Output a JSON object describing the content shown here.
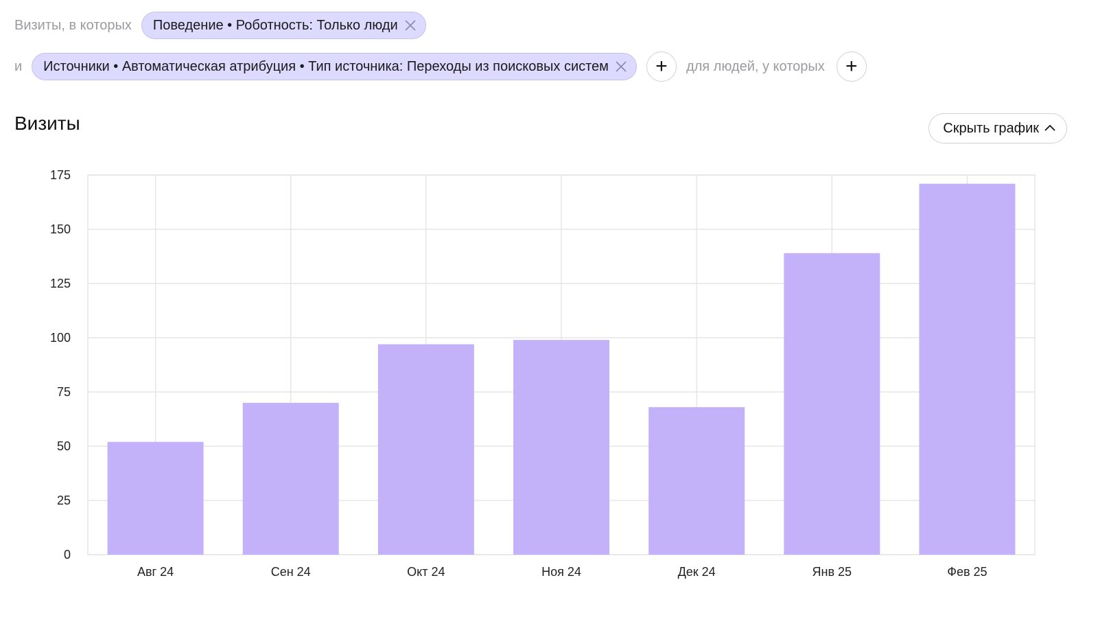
{
  "filters": {
    "visits_prefix": "Визиты, в которых",
    "and_prefix": "и",
    "chip1": "Поведение • Роботность: Только люди",
    "chip2": "Источники • Автоматическая атрибуция • Тип источника: Переходы из поисковых систем",
    "people_label": "для людей, у которых",
    "add_symbol": "+"
  },
  "header": {
    "title": "Визиты",
    "hide_chart_label": "Скрыть график"
  },
  "colors": {
    "bar": "#c3b2fa",
    "chip_bg": "#dcdaff",
    "grid": "#e5e5e5"
  },
  "chart_data": {
    "type": "bar",
    "categories": [
      "Авг 24",
      "Сен 24",
      "Окт 24",
      "Ноя 24",
      "Дек 24",
      "Янв 25",
      "Фев 25"
    ],
    "values": [
      52,
      70,
      97,
      99,
      68,
      139,
      171
    ],
    "y_ticks": [
      0,
      25,
      50,
      75,
      100,
      125,
      150,
      175
    ],
    "ylim": [
      0,
      175
    ],
    "grid": true
  }
}
